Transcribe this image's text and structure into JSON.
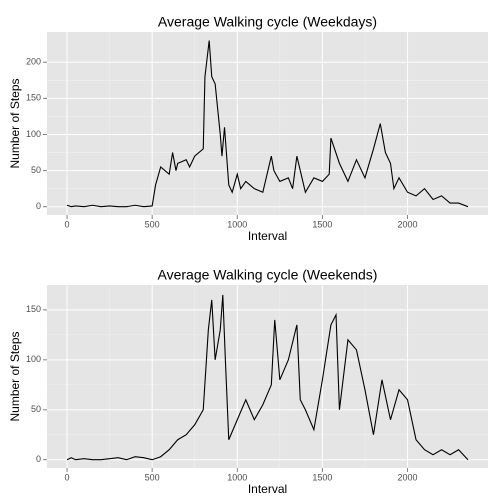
{
  "chart_data": [
    {
      "type": "line",
      "title": "Average Walking cycle (Weekdays)",
      "x_label": "Interval",
      "y_label": "Number of Steps",
      "color": "#000000",
      "x": [
        0,
        25,
        50,
        100,
        150,
        200,
        250,
        300,
        350,
        400,
        450,
        500,
        520,
        550,
        600,
        620,
        640,
        650,
        700,
        720,
        750,
        800,
        810,
        820,
        835,
        850,
        870,
        900,
        910,
        925,
        950,
        970,
        1000,
        1020,
        1050,
        1100,
        1150,
        1200,
        1215,
        1250,
        1300,
        1325,
        1350,
        1400,
        1450,
        1500,
        1540,
        1550,
        1600,
        1650,
        1700,
        1750,
        1800,
        1840,
        1870,
        1900,
        1920,
        1950,
        2000,
        2050,
        2100,
        2150,
        2200,
        2250,
        2300,
        2355
      ],
      "values": [
        2,
        0,
        1,
        0,
        2,
        0,
        1,
        0,
        0,
        2,
        0,
        1,
        30,
        55,
        45,
        75,
        50,
        60,
        65,
        55,
        70,
        80,
        180,
        200,
        230,
        180,
        170,
        100,
        70,
        110,
        30,
        20,
        45,
        25,
        35,
        25,
        20,
        70,
        50,
        35,
        40,
        25,
        70,
        20,
        40,
        35,
        45,
        95,
        60,
        35,
        65,
        40,
        80,
        115,
        75,
        60,
        25,
        40,
        20,
        15,
        25,
        10,
        15,
        5,
        5,
        0
      ],
      "xlim": [
        -117.75,
        2472.75
      ],
      "xticks": [
        0,
        500,
        1000,
        1500,
        2000
      ],
      "ylim": [
        -11.5,
        241.9
      ],
      "yticks": [
        0,
        50,
        100,
        150,
        200
      ],
      "grid": true
    },
    {
      "type": "line",
      "title": "Average Walking cycle (Weekends)",
      "x_label": "Interval",
      "y_label": "Number of Steps",
      "color": "#000000",
      "x": [
        0,
        25,
        50,
        100,
        150,
        200,
        250,
        300,
        350,
        400,
        450,
        500,
        550,
        600,
        650,
        700,
        750,
        800,
        830,
        850,
        870,
        900,
        915,
        930,
        950,
        1000,
        1050,
        1100,
        1150,
        1200,
        1220,
        1250,
        1300,
        1350,
        1370,
        1400,
        1450,
        1500,
        1550,
        1580,
        1600,
        1650,
        1700,
        1750,
        1800,
        1850,
        1900,
        1950,
        2000,
        2050,
        2100,
        2150,
        2200,
        2250,
        2300,
        2355
      ],
      "values": [
        0,
        2,
        0,
        1,
        0,
        0,
        1,
        2,
        0,
        3,
        2,
        0,
        3,
        10,
        20,
        25,
        35,
        50,
        130,
        160,
        100,
        130,
        165,
        100,
        20,
        40,
        60,
        40,
        55,
        75,
        140,
        80,
        100,
        135,
        60,
        50,
        30,
        80,
        135,
        145,
        50,
        120,
        110,
        70,
        25,
        80,
        40,
        70,
        60,
        20,
        10,
        5,
        10,
        5,
        10,
        0
      ],
      "xlim": [
        -117.75,
        2472.75
      ],
      "xticks": [
        0,
        500,
        1000,
        1500,
        2000
      ],
      "ylim": [
        -8.3,
        174.9
      ],
      "yticks": [
        0,
        50,
        100,
        150
      ],
      "grid": true
    }
  ]
}
